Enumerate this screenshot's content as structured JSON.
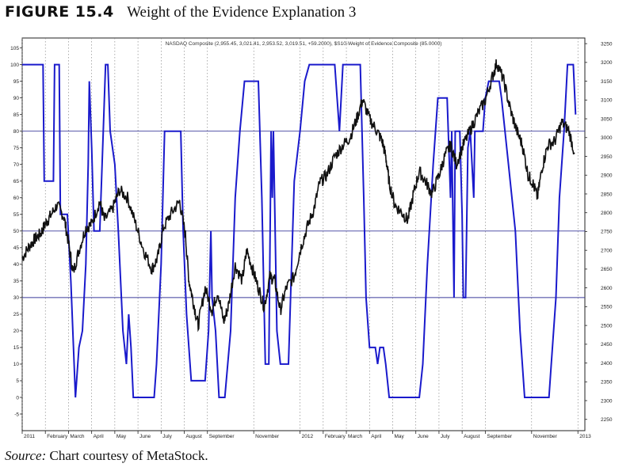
{
  "figure": {
    "label": "FIGURE 15.4",
    "title": "Weight of the Evidence Explanation 3",
    "source_label": "Source:",
    "source_text": "Chart courtesy of MetaStock."
  },
  "chart_data": {
    "type": "line",
    "title": "NASDAQ Composite (2,955.45, 3,021.41, 2,953.52, 3,019.51, +59.2000), $S10-Weight of Evidence Composite (85.0000)",
    "left_axis": {
      "min": -10,
      "max": 108,
      "ticks": [
        -5,
        0,
        5,
        10,
        15,
        20,
        25,
        30,
        35,
        40,
        45,
        50,
        55,
        60,
        65,
        70,
        75,
        80,
        85,
        90,
        95,
        100,
        105
      ]
    },
    "right_axis": {
      "min": 2220,
      "max": 3265,
      "ticks": [
        2250,
        2300,
        2350,
        2400,
        2450,
        2500,
        2550,
        2600,
        2650,
        2700,
        2750,
        2800,
        2850,
        2900,
        2950,
        3000,
        3050,
        3100,
        3150,
        3200,
        3250
      ]
    },
    "reference_lines": [
      80,
      50,
      30
    ],
    "x_range": [
      0,
      24.3
    ],
    "month_labels": [
      {
        "label": "2011",
        "m": 0
      },
      {
        "label": "February",
        "m": 1
      },
      {
        "label": "March",
        "m": 2
      },
      {
        "label": "April",
        "m": 3
      },
      {
        "label": "May",
        "m": 4
      },
      {
        "label": "June",
        "m": 5
      },
      {
        "label": "July",
        "m": 6
      },
      {
        "label": "August",
        "m": 7
      },
      {
        "label": "September",
        "m": 8
      },
      {
        "label": "November",
        "m": 10
      },
      {
        "label": "2012",
        "m": 12
      },
      {
        "label": "February",
        "m": 13
      },
      {
        "label": "March",
        "m": 14
      },
      {
        "label": "April",
        "m": 15
      },
      {
        "label": "May",
        "m": 16
      },
      {
        "label": "June",
        "m": 17
      },
      {
        "label": "July",
        "m": 18
      },
      {
        "label": "August",
        "m": 19
      },
      {
        "label": "September",
        "m": 20
      },
      {
        "label": "November",
        "m": 22
      },
      {
        "label": "2013",
        "m": 24
      }
    ],
    "series": [
      {
        "name": "$S10-Weight of Evidence Composite",
        "axis": "left",
        "color": "#1a1acc",
        "points": [
          [
            0.0,
            100
          ],
          [
            0.9,
            100
          ],
          [
            0.95,
            65
          ],
          [
            1.35,
            65
          ],
          [
            1.4,
            100
          ],
          [
            1.6,
            100
          ],
          [
            1.65,
            55
          ],
          [
            1.95,
            55
          ],
          [
            2.1,
            35
          ],
          [
            2.3,
            0
          ],
          [
            2.45,
            15
          ],
          [
            2.6,
            20
          ],
          [
            2.75,
            40
          ],
          [
            2.85,
            70
          ],
          [
            2.9,
            95
          ],
          [
            3.0,
            75
          ],
          [
            3.1,
            50
          ],
          [
            3.35,
            50
          ],
          [
            3.5,
            80
          ],
          [
            3.6,
            100
          ],
          [
            3.7,
            100
          ],
          [
            3.8,
            80
          ],
          [
            4.0,
            70
          ],
          [
            4.15,
            50
          ],
          [
            4.35,
            20
          ],
          [
            4.5,
            10
          ],
          [
            4.6,
            25
          ],
          [
            4.7,
            15
          ],
          [
            4.8,
            0
          ],
          [
            5.7,
            0
          ],
          [
            5.8,
            10
          ],
          [
            6.0,
            40
          ],
          [
            6.15,
            80
          ],
          [
            6.85,
            80
          ],
          [
            6.95,
            50
          ],
          [
            7.1,
            25
          ],
          [
            7.3,
            5
          ],
          [
            7.9,
            5
          ],
          [
            8.05,
            20
          ],
          [
            8.15,
            50
          ],
          [
            8.2,
            30
          ],
          [
            8.35,
            20
          ],
          [
            8.5,
            0
          ],
          [
            8.75,
            0
          ],
          [
            9.0,
            20
          ],
          [
            9.2,
            60
          ],
          [
            9.4,
            80
          ],
          [
            9.6,
            95
          ],
          [
            10.2,
            95
          ],
          [
            10.35,
            60
          ],
          [
            10.5,
            10
          ],
          [
            10.65,
            10
          ],
          [
            10.75,
            80
          ],
          [
            10.8,
            60
          ],
          [
            10.85,
            80
          ],
          [
            11.0,
            20
          ],
          [
            11.15,
            10
          ],
          [
            11.5,
            10
          ],
          [
            11.75,
            65
          ],
          [
            12.0,
            80
          ],
          [
            12.2,
            95
          ],
          [
            12.4,
            100
          ],
          [
            13.5,
            100
          ],
          [
            13.7,
            80
          ],
          [
            13.85,
            100
          ],
          [
            14.6,
            100
          ],
          [
            14.75,
            60
          ],
          [
            14.85,
            30
          ],
          [
            15.0,
            15
          ],
          [
            15.25,
            15
          ],
          [
            15.35,
            10
          ],
          [
            15.45,
            15
          ],
          [
            15.6,
            15
          ],
          [
            15.7,
            10
          ],
          [
            15.85,
            0
          ],
          [
            17.15,
            0
          ],
          [
            17.3,
            10
          ],
          [
            17.5,
            40
          ],
          [
            17.75,
            70
          ],
          [
            17.95,
            90
          ],
          [
            18.35,
            90
          ],
          [
            18.5,
            60
          ],
          [
            18.55,
            80
          ],
          [
            18.65,
            30
          ],
          [
            18.7,
            80
          ],
          [
            18.9,
            80
          ],
          [
            19.0,
            55
          ],
          [
            19.05,
            30
          ],
          [
            19.15,
            30
          ],
          [
            19.25,
            75
          ],
          [
            19.35,
            80
          ],
          [
            19.5,
            60
          ],
          [
            19.55,
            80
          ],
          [
            19.9,
            80
          ],
          [
            20.0,
            90
          ],
          [
            20.15,
            95
          ],
          [
            20.6,
            95
          ],
          [
            20.7,
            90
          ],
          [
            20.85,
            80
          ],
          [
            21.0,
            70
          ],
          [
            21.3,
            50
          ],
          [
            21.5,
            20
          ],
          [
            21.7,
            0
          ],
          [
            22.75,
            0
          ],
          [
            22.85,
            10
          ],
          [
            23.05,
            30
          ],
          [
            23.2,
            60
          ],
          [
            23.4,
            80
          ],
          [
            23.55,
            100
          ],
          [
            23.8,
            100
          ],
          [
            23.9,
            85
          ]
        ]
      },
      {
        "name": "NASDAQ Composite",
        "axis": "right",
        "color": "#111111",
        "points": [
          [
            0.0,
            2680
          ],
          [
            0.3,
            2710
          ],
          [
            0.55,
            2730
          ],
          [
            0.8,
            2745
          ],
          [
            1.0,
            2770
          ],
          [
            1.2,
            2790
          ],
          [
            1.5,
            2820
          ],
          [
            1.8,
            2790
          ],
          [
            2.0,
            2720
          ],
          [
            2.2,
            2640
          ],
          [
            2.45,
            2700
          ],
          [
            2.75,
            2760
          ],
          [
            3.0,
            2770
          ],
          [
            3.35,
            2830
          ],
          [
            3.55,
            2780
          ],
          [
            3.9,
            2810
          ],
          [
            4.2,
            2860
          ],
          [
            4.55,
            2840
          ],
          [
            4.9,
            2770
          ],
          [
            5.25,
            2700
          ],
          [
            5.6,
            2650
          ],
          [
            5.85,
            2680
          ],
          [
            6.1,
            2760
          ],
          [
            6.45,
            2800
          ],
          [
            6.8,
            2830
          ],
          [
            7.05,
            2740
          ],
          [
            7.2,
            2620
          ],
          [
            7.4,
            2560
          ],
          [
            7.6,
            2500
          ],
          [
            7.9,
            2600
          ],
          [
            8.2,
            2540
          ],
          [
            8.45,
            2590
          ],
          [
            8.7,
            2510
          ],
          [
            8.9,
            2550
          ],
          [
            9.2,
            2660
          ],
          [
            9.5,
            2620
          ],
          [
            9.7,
            2700
          ],
          [
            9.95,
            2650
          ],
          [
            10.2,
            2600
          ],
          [
            10.45,
            2550
          ],
          [
            10.7,
            2630
          ],
          [
            10.9,
            2620
          ],
          [
            11.15,
            2540
          ],
          [
            11.4,
            2600
          ],
          [
            11.75,
            2630
          ],
          [
            12.0,
            2700
          ],
          [
            12.3,
            2760
          ],
          [
            12.6,
            2810
          ],
          [
            12.85,
            2880
          ],
          [
            13.15,
            2900
          ],
          [
            13.5,
            2950
          ],
          [
            13.85,
            2980
          ],
          [
            14.15,
            3000
          ],
          [
            14.45,
            3050
          ],
          [
            14.7,
            3100
          ],
          [
            15.0,
            3050
          ],
          [
            15.3,
            3020
          ],
          [
            15.55,
            2990
          ],
          [
            15.7,
            2950
          ],
          [
            15.85,
            2880
          ],
          [
            16.1,
            2820
          ],
          [
            16.4,
            2800
          ],
          [
            16.65,
            2780
          ],
          [
            16.9,
            2850
          ],
          [
            17.15,
            2910
          ],
          [
            17.45,
            2880
          ],
          [
            17.7,
            2850
          ],
          [
            18.0,
            2900
          ],
          [
            18.25,
            2950
          ],
          [
            18.5,
            2980
          ],
          [
            18.75,
            2930
          ],
          [
            19.05,
            2980
          ],
          [
            19.35,
            3020
          ],
          [
            19.65,
            3060
          ],
          [
            20.0,
            3100
          ],
          [
            20.3,
            3160
          ],
          [
            20.5,
            3200
          ],
          [
            20.8,
            3150
          ],
          [
            21.1,
            3070
          ],
          [
            21.35,
            3020
          ],
          [
            21.6,
            2980
          ],
          [
            21.85,
            2900
          ],
          [
            22.05,
            2880
          ],
          [
            22.25,
            2840
          ],
          [
            22.45,
            2920
          ],
          [
            22.7,
            2980
          ],
          [
            23.0,
            2990
          ],
          [
            23.3,
            3040
          ],
          [
            23.6,
            3020
          ],
          [
            23.85,
            2960
          ]
        ]
      }
    ]
  }
}
